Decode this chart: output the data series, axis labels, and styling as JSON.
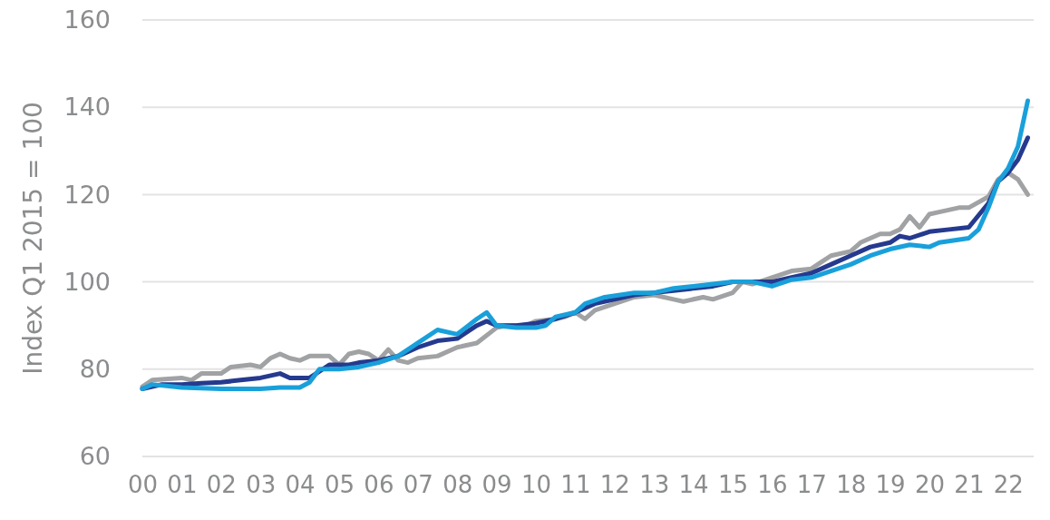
{
  "chart_data": {
    "type": "line",
    "ylabel": "Index Q1 2015 = 100",
    "xlim": [
      2000,
      2022.65
    ],
    "xticks": [
      {
        "value": 2000,
        "label": "00"
      },
      {
        "value": 2001,
        "label": "01"
      },
      {
        "value": 2002,
        "label": "02"
      },
      {
        "value": 2003,
        "label": "03"
      },
      {
        "value": 2004,
        "label": "04"
      },
      {
        "value": 2005,
        "label": "05"
      },
      {
        "value": 2006,
        "label": "06"
      },
      {
        "value": 2007,
        "label": "07"
      },
      {
        "value": 2008,
        "label": "08"
      },
      {
        "value": 2009,
        "label": "09"
      },
      {
        "value": 2010,
        "label": "10"
      },
      {
        "value": 2011,
        "label": "11"
      },
      {
        "value": 2012,
        "label": "12"
      },
      {
        "value": 2013,
        "label": "13"
      },
      {
        "value": 2014,
        "label": "14"
      },
      {
        "value": 2015,
        "label": "15"
      },
      {
        "value": 2016,
        "label": "16"
      },
      {
        "value": 2017,
        "label": "17"
      },
      {
        "value": 2018,
        "label": "18"
      },
      {
        "value": 2019,
        "label": "19"
      },
      {
        "value": 2020,
        "label": "20"
      },
      {
        "value": 2021,
        "label": "21"
      },
      {
        "value": 2022,
        "label": "22"
      }
    ],
    "ylim": [
      60,
      160
    ],
    "yticks": [
      60,
      80,
      100,
      120,
      140,
      160
    ],
    "grid": "y",
    "marker": "none",
    "line_style": "solid",
    "series": [
      {
        "color": "#a0a2a4",
        "x": [
          2000,
          2000.25,
          2001,
          2001.25,
          2001.5,
          2002,
          2002.25,
          2002.75,
          2003,
          2003.25,
          2003.5,
          2003.75,
          2004,
          2004.25,
          2004.75,
          2005,
          2005.25,
          2005.5,
          2005.75,
          2006,
          2006.25,
          2006.5,
          2006.75,
          2007,
          2007.5,
          2008,
          2008.5,
          2009,
          2009.25,
          2009.75,
          2010,
          2010.5,
          2010.75,
          2011,
          2011.25,
          2011.5,
          2012,
          2012.5,
          2013,
          2013.5,
          2013.75,
          2014.25,
          2014.5,
          2015,
          2015.25,
          2015.5,
          2016,
          2016.5,
          2017,
          2017.25,
          2017.5,
          2018,
          2018.25,
          2018.75,
          2019,
          2019.25,
          2019.5,
          2019.75,
          2020,
          2020.25,
          2020.75,
          2021,
          2021.5,
          2021.75,
          2022,
          2022.25,
          2022.5
        ],
        "values": [
          76,
          77.5,
          78,
          77.5,
          79,
          79,
          80.5,
          81,
          80.5,
          82.5,
          83.5,
          82.5,
          82,
          83,
          83,
          81,
          83.5,
          84,
          83.5,
          82,
          84.5,
          82,
          81.5,
          82.5,
          83,
          85,
          86,
          89.5,
          90,
          90,
          91,
          91.5,
          92,
          93,
          91.5,
          93.5,
          95,
          96.5,
          97,
          96,
          95.5,
          96.5,
          96,
          97.5,
          100,
          99.5,
          101,
          102.5,
          103,
          104.5,
          106,
          107,
          109,
          111,
          111,
          112,
          115,
          112.5,
          115.5,
          116,
          117,
          117,
          119.5,
          123.5,
          125,
          123.5,
          120
        ]
      },
      {
        "color": "#253a8e",
        "x": [
          2000,
          2000.5,
          2001,
          2001.5,
          2002,
          2002.5,
          2003,
          2003.5,
          2003.75,
          2004.25,
          2004.75,
          2005.25,
          2005.5,
          2006,
          2006.5,
          2007,
          2007.5,
          2008,
          2008.5,
          2008.75,
          2009,
          2009.5,
          2010,
          2010.5,
          2011,
          2011.5,
          2012,
          2012.5,
          2013,
          2013.5,
          2014,
          2014.5,
          2015,
          2015.5,
          2016,
          2016.5,
          2017,
          2017.5,
          2018,
          2018.5,
          2019,
          2019.25,
          2019.5,
          2020,
          2020.5,
          2021,
          2021.5,
          2021.75,
          2022,
          2022.25,
          2022.5
        ],
        "values": [
          75.5,
          76.5,
          76.5,
          76.8,
          77,
          77.5,
          78,
          79,
          78,
          78,
          81,
          81,
          81.5,
          82,
          83,
          85,
          86.5,
          87,
          90,
          91,
          90,
          90,
          90.5,
          91.5,
          93,
          95,
          96,
          97,
          97.5,
          98,
          98.5,
          99,
          100,
          100,
          100,
          101,
          102,
          104,
          106,
          108,
          109,
          110.5,
          110,
          111.5,
          112,
          112.5,
          118,
          123,
          125,
          128,
          133
        ]
      },
      {
        "color": "#19a0db",
        "x": [
          2000,
          2000.25,
          2001,
          2002,
          2002.5,
          2003,
          2003.5,
          2004,
          2004.25,
          2004.5,
          2005,
          2005.5,
          2006,
          2006.5,
          2007,
          2007.5,
          2008,
          2008.5,
          2008.75,
          2009,
          2009.5,
          2010,
          2010.25,
          2010.5,
          2011,
          2011.25,
          2011.75,
          2012.5,
          2013,
          2013.5,
          2014,
          2014.5,
          2015,
          2015.5,
          2016,
          2016.5,
          2017,
          2017.5,
          2018,
          2018.5,
          2019,
          2019.5,
          2020,
          2020.25,
          2021,
          2021.25,
          2021.5,
          2021.75,
          2022,
          2022.25,
          2022.5
        ],
        "values": [
          75.5,
          76.5,
          75.8,
          75.5,
          75.5,
          75.5,
          75.8,
          75.8,
          77,
          80,
          80,
          80.5,
          81.5,
          83,
          86,
          89,
          88,
          91.5,
          93,
          90,
          89.5,
          89.5,
          90,
          92,
          93,
          95,
          96.5,
          97.5,
          97.5,
          98.5,
          99,
          99.5,
          100,
          100,
          99,
          100.5,
          101,
          102.5,
          104,
          106,
          107.5,
          108.5,
          108,
          109,
          110,
          112,
          117,
          123,
          126,
          131,
          141.5
        ]
      }
    ]
  }
}
